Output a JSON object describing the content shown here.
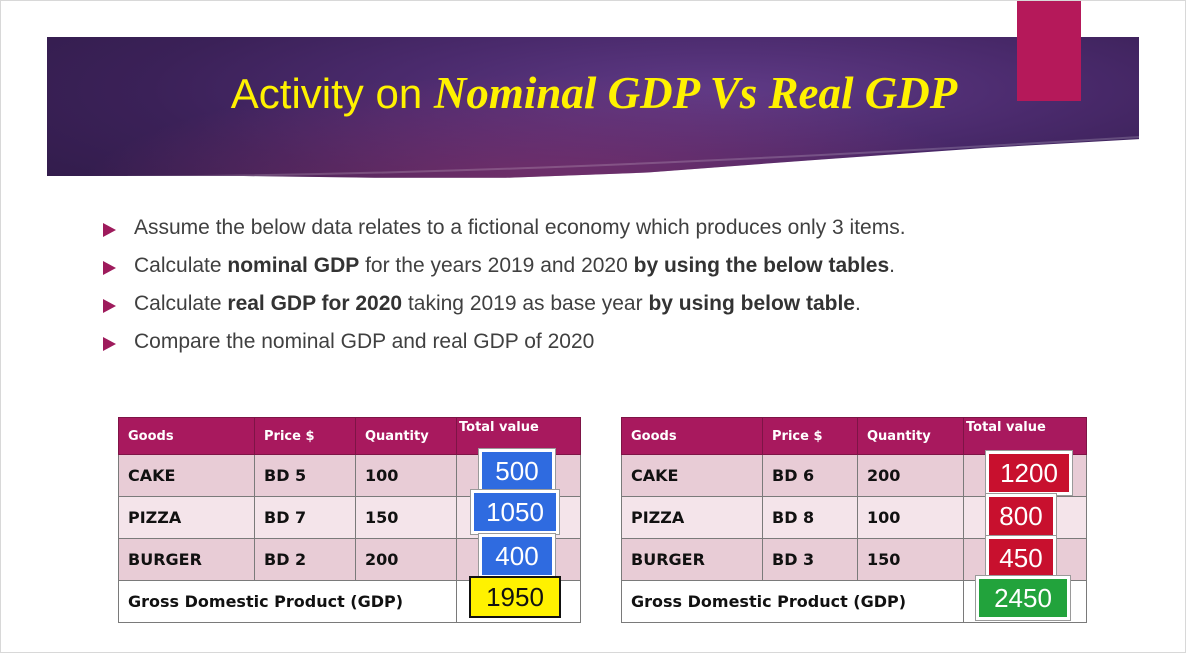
{
  "title": {
    "plain": "Activity on ",
    "italic": "Nominal GDP Vs Real GDP"
  },
  "bullets": [
    {
      "parts": [
        {
          "t": "Assume the below data relates to a fictional economy which produces only 3 items.",
          "b": false
        }
      ]
    },
    {
      "parts": [
        {
          "t": "Calculate ",
          "b": false
        },
        {
          "t": "nominal GDP",
          "b": true
        },
        {
          "t": " for the years 2019 and 2020 ",
          "b": false
        },
        {
          "t": "by using the below tables",
          "b": true
        },
        {
          "t": ".",
          "b": false
        }
      ]
    },
    {
      "parts": [
        {
          "t": "Calculate ",
          "b": false
        },
        {
          "t": "real GDP for 2020",
          "b": true
        },
        {
          "t": " taking 2019 as base year ",
          "b": false
        },
        {
          "t": "by using below table",
          "b": true
        },
        {
          "t": ".",
          "b": false
        }
      ]
    },
    {
      "parts": [
        {
          "t": "Compare the nominal GDP and real GDP of 2020",
          "b": false
        }
      ]
    }
  ],
  "table_left": {
    "headers": [
      "Goods",
      "Price $",
      "Quantity",
      "Total value"
    ],
    "rows": [
      {
        "good": "CAKE",
        "price": "BD 5",
        "qty": "100",
        "total": "500"
      },
      {
        "good": "PIZZA",
        "price": "BD 7",
        "qty": "150",
        "total": "1050"
      },
      {
        "good": "BURGER",
        "price": "BD 2",
        "qty": "200",
        "total": "400"
      }
    ],
    "gdp_label": "Gross Domestic Product (GDP)",
    "gdp_value": "1950"
  },
  "table_right": {
    "headers": [
      "Goods",
      "Price $",
      "Quantity",
      "Total value"
    ],
    "rows": [
      {
        "good": "CAKE",
        "price": "BD 6",
        "qty": "200",
        "total": "1200"
      },
      {
        "good": "PIZZA",
        "price": "BD 8",
        "qty": "100",
        "total": "800"
      },
      {
        "good": "BURGER",
        "price": "BD 3",
        "qty": "150",
        "total": "450"
      }
    ],
    "gdp_label": "Gross Domestic Product (GDP)",
    "gdp_value": "2450"
  },
  "colors": {
    "title": "#fff200",
    "banner": "#3b2158",
    "accent": "#b5195a",
    "header": "#a8195e",
    "left_values": "#2f6be0",
    "right_values": "#c8102e",
    "left_gdp": "#fff200",
    "right_gdp": "#22a33c"
  }
}
